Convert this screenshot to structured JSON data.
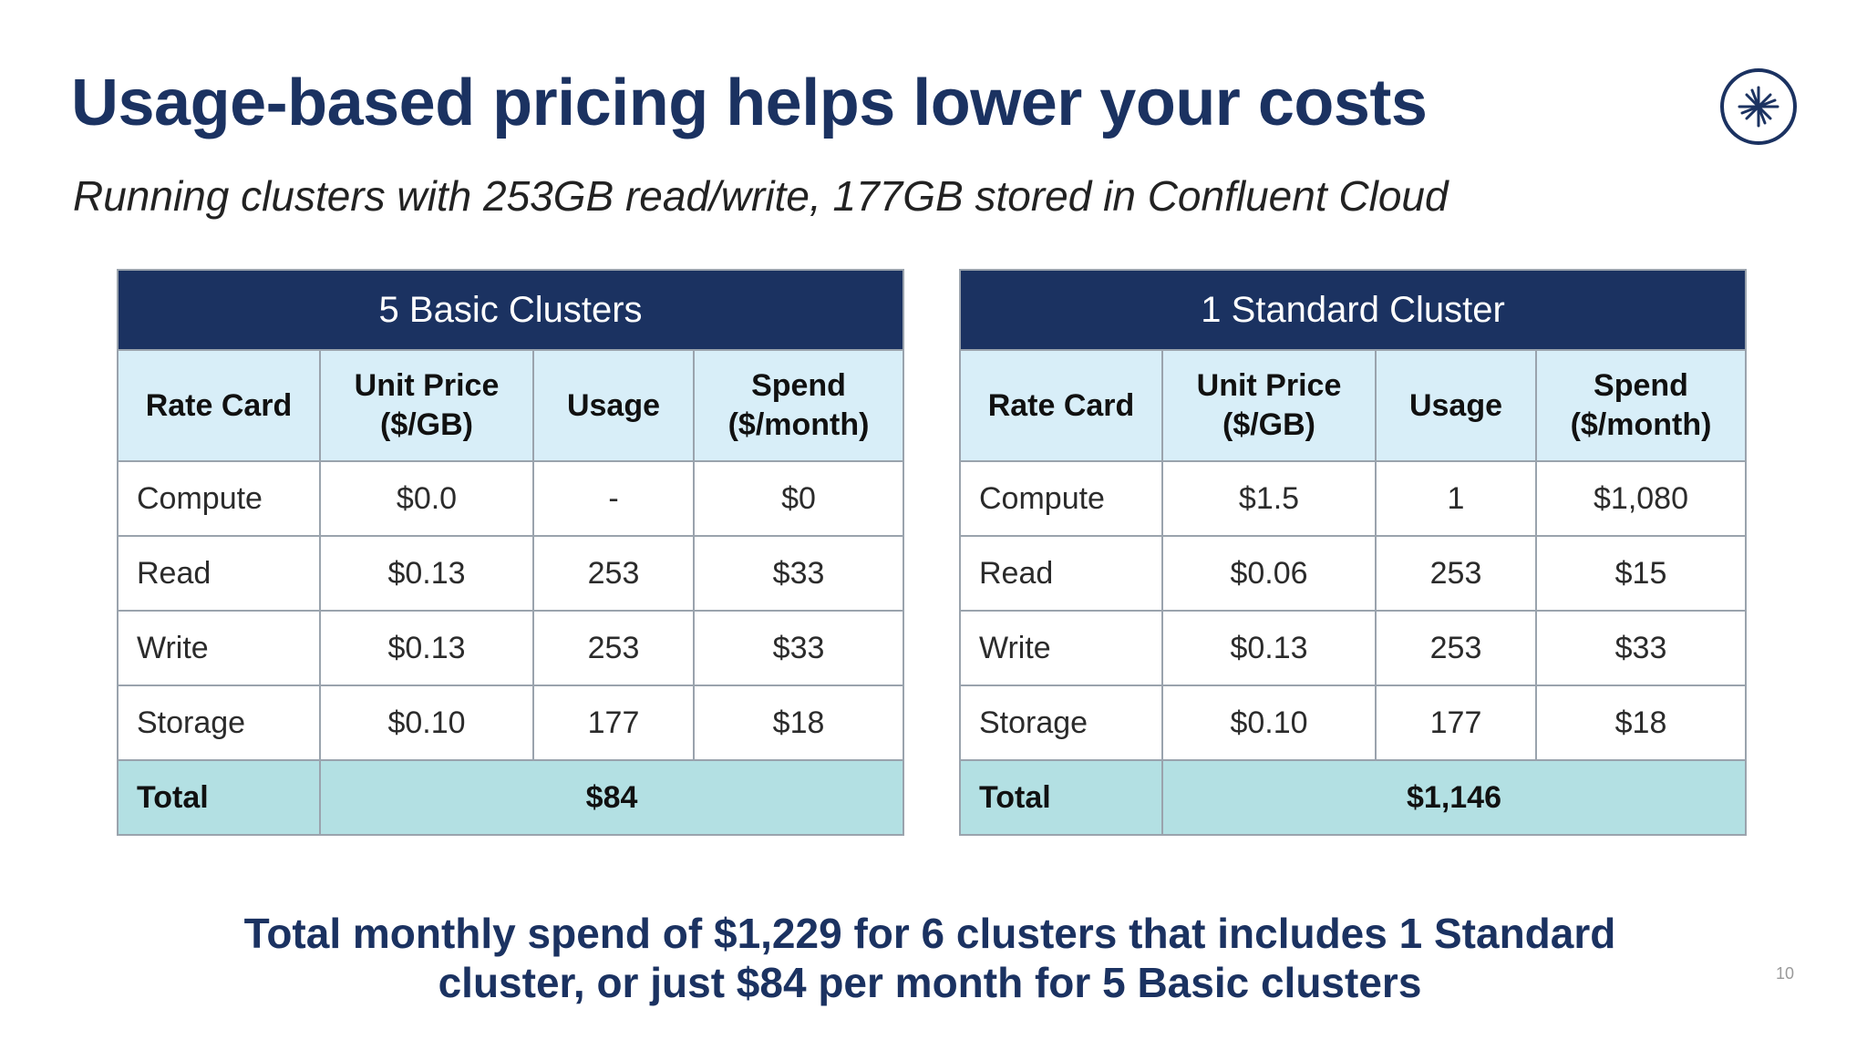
{
  "slide": {
    "title": "Usage-based pricing helps lower your costs",
    "subtitle": "Running clusters with 253GB read/write, 177GB stored in Confluent Cloud",
    "summary_line1": "Total monthly spend of $1,229 for 6 clusters that includes 1 Standard",
    "summary_line2": "cluster, or just $84 per month for 5 Basic clusters",
    "page_number": "10"
  },
  "logo": {
    "icon": "confluent-logo-icon",
    "color": "#1b3261"
  },
  "colors": {
    "navy": "#1b3261",
    "header_light_blue": "#d8eef8",
    "total_teal": "#b3e0e3"
  },
  "tables": [
    {
      "title": "5 Basic Clusters",
      "columns": [
        "Rate Card",
        "Unit Price ($/GB)",
        "Usage",
        "Spend ($/month)"
      ],
      "rows": [
        [
          "Compute",
          "$0.0",
          "-",
          "$0"
        ],
        [
          "Read",
          "$0.13",
          "253",
          "$33"
        ],
        [
          "Write",
          "$0.13",
          "253",
          "$33"
        ],
        [
          "Storage",
          "$0.10",
          "177",
          "$18"
        ]
      ],
      "total_label": "Total",
      "total_value": "$84"
    },
    {
      "title": "1 Standard Cluster",
      "columns": [
        "Rate Card",
        "Unit Price ($/GB)",
        "Usage",
        "Spend ($/month)"
      ],
      "rows": [
        [
          "Compute",
          "$1.5",
          "1",
          "$1,080"
        ],
        [
          "Read",
          "$0.06",
          "253",
          "$15"
        ],
        [
          "Write",
          "$0.13",
          "253",
          "$33"
        ],
        [
          "Storage",
          "$0.10",
          "177",
          "$18"
        ]
      ],
      "total_label": "Total",
      "total_value": "$1,146"
    }
  ]
}
